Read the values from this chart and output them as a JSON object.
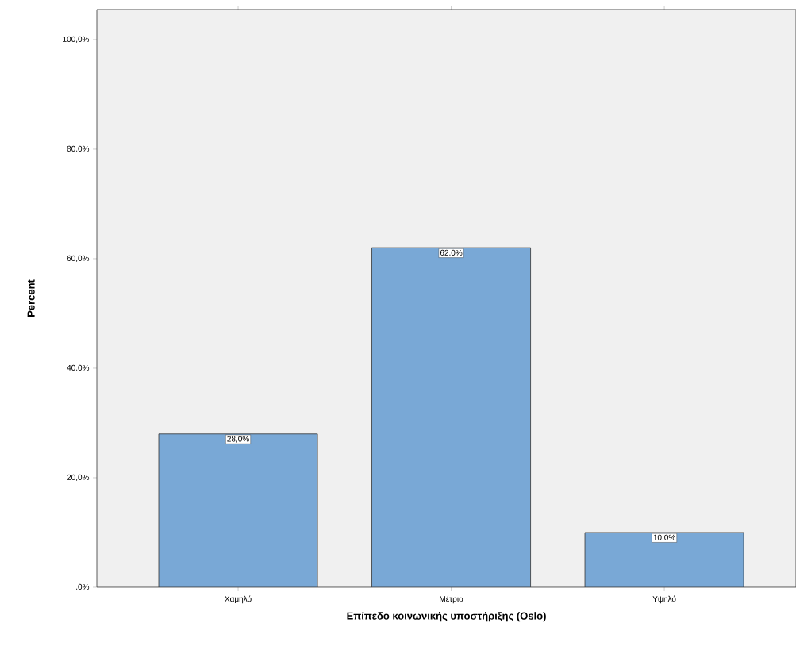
{
  "chart_data": {
    "type": "bar",
    "xlabel": "Επίπεδο κοινωνικής υποστήριξης (Oslo)",
    "ylabel": "Percent",
    "categories": [
      "Χαμηλό",
      "Μέτριο",
      "Υψηλό"
    ],
    "values": [
      28,
      62,
      10
    ],
    "value_labels": [
      "28,0%",
      "62,0%",
      "10,0%"
    ],
    "color": "#79a8d6",
    "ylim": [
      0,
      105.5
    ],
    "yticks": [
      {
        "value": 0,
        "label": ",0%"
      },
      {
        "value": 20,
        "label": "20,0%"
      },
      {
        "value": 40,
        "label": "40,0%"
      },
      {
        "value": 60,
        "label": "60,0%"
      },
      {
        "value": 80,
        "label": "80,0%"
      },
      {
        "value": 100,
        "label": "100,0%"
      }
    ],
    "grid": false
  }
}
